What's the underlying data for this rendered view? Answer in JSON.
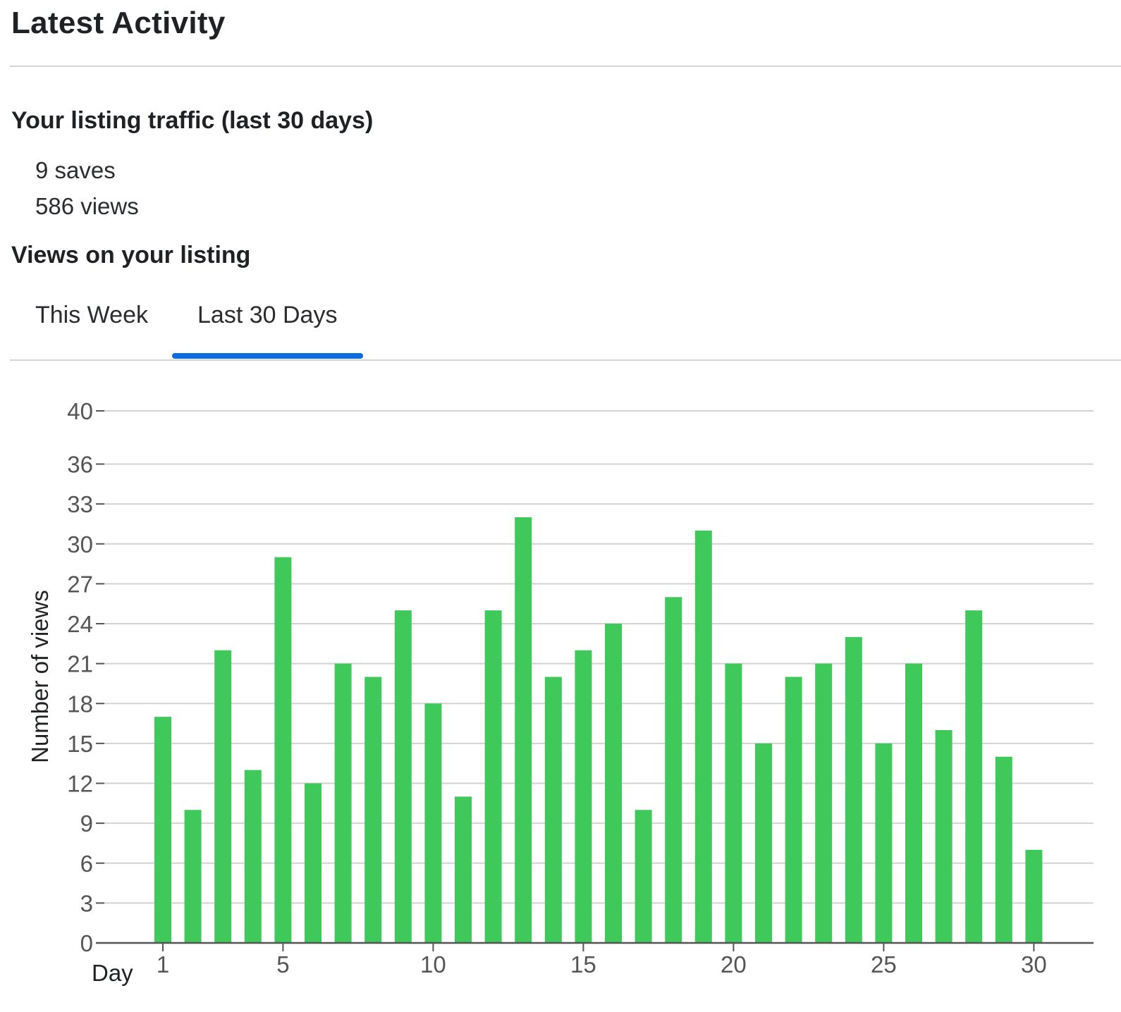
{
  "header": {
    "title": "Latest Activity"
  },
  "traffic": {
    "heading": "Your listing traffic (last 30 days)",
    "saves": "9 saves",
    "views": "586 views"
  },
  "views_section": {
    "heading": "Views on your listing"
  },
  "tabs": [
    {
      "label": "This Week",
      "active": false
    },
    {
      "label": "Last 30 Days",
      "active": true
    }
  ],
  "colors": {
    "accent": "#0a6ce0",
    "bar": "#3fc95a",
    "grid": "#d3d3d3",
    "axis": "#555555",
    "tick_text": "#555555"
  },
  "chart_data": {
    "type": "bar",
    "xlabel": "Day",
    "ylabel": "Number of views",
    "x": [
      1,
      2,
      3,
      4,
      5,
      6,
      7,
      8,
      9,
      10,
      11,
      12,
      13,
      14,
      15,
      16,
      17,
      18,
      19,
      20,
      21,
      22,
      23,
      24,
      25,
      26,
      27,
      28,
      29,
      30
    ],
    "values": [
      17,
      10,
      22,
      13,
      29,
      12,
      21,
      20,
      25,
      18,
      11,
      25,
      32,
      20,
      22,
      24,
      10,
      26,
      31,
      21,
      15,
      20,
      21,
      23,
      15,
      21,
      16,
      25,
      14,
      7
    ],
    "ylim": [
      0,
      40
    ],
    "yticks": [
      0,
      3,
      6,
      9,
      12,
      15,
      18,
      21,
      24,
      27,
      30,
      33,
      36,
      40
    ],
    "xticks": [
      1,
      5,
      10,
      15,
      20,
      25,
      30
    ],
    "grid": true
  }
}
